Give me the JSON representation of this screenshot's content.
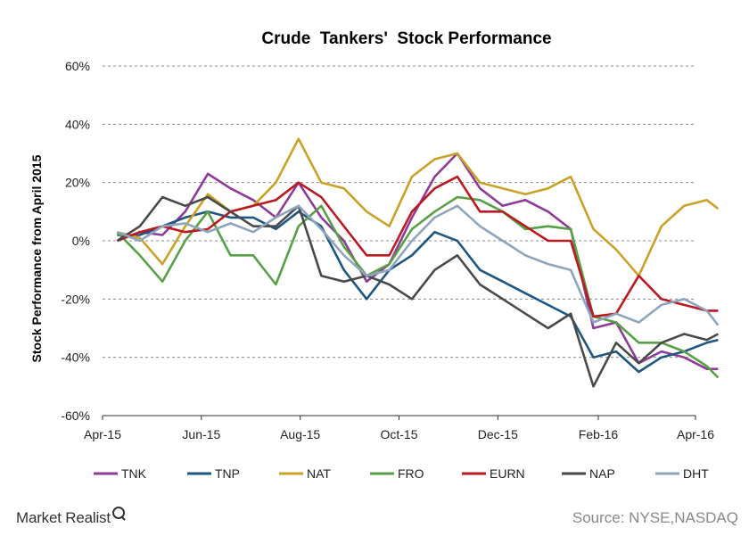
{
  "chart_data": {
    "type": "line",
    "title": "Crude  Tankers'  Stock Performance",
    "ylabel": "Stock Performance from April 2015",
    "xlabel": "",
    "x_tick_labels": [
      "Apr-15",
      "Jun-15",
      "Aug-15",
      "Oct-15",
      "Dec-15",
      "Feb-16",
      "Apr-16"
    ],
    "y_tick_labels": [
      "60%",
      "40%",
      "20%",
      "0%",
      "-20%",
      "-40%",
      "-60%"
    ],
    "ylim": [
      -60,
      60
    ],
    "x": [
      "2015-04-10",
      "2015-04-24",
      "2015-05-08",
      "2015-05-22",
      "2015-06-05",
      "2015-06-19",
      "2015-07-03",
      "2015-07-17",
      "2015-07-31",
      "2015-08-14",
      "2015-08-28",
      "2015-09-11",
      "2015-09-25",
      "2015-10-09",
      "2015-10-23",
      "2015-11-06",
      "2015-11-20",
      "2015-12-04",
      "2015-12-18",
      "2016-01-01",
      "2016-01-15",
      "2016-01-29",
      "2016-02-12",
      "2016-02-26",
      "2016-03-11",
      "2016-03-25",
      "2016-04-08",
      "2016-04-15"
    ],
    "grid": true,
    "legend_position": "bottom",
    "series": [
      {
        "name": "TNK",
        "color": "#8e3c97",
        "values": [
          0,
          3,
          2,
          10,
          23,
          18,
          14,
          8,
          20,
          8,
          0,
          -14,
          -8,
          8,
          22,
          30,
          18,
          12,
          14,
          10,
          4,
          -30,
          -28,
          -42,
          -38,
          -40,
          -44,
          -44
        ]
      },
      {
        "name": "TNP",
        "color": "#1f5781",
        "values": [
          2,
          2,
          5,
          8,
          10,
          8,
          8,
          4,
          10,
          5,
          -10,
          -20,
          -10,
          -5,
          3,
          0,
          -10,
          -14,
          -18,
          -22,
          -26,
          -40,
          -38,
          -45,
          -40,
          -38,
          -35,
          -34
        ]
      },
      {
        "name": "NAT",
        "color": "#c9a227",
        "values": [
          3,
          1,
          -8,
          5,
          16,
          10,
          12,
          20,
          35,
          20,
          18,
          10,
          5,
          22,
          28,
          30,
          20,
          18,
          16,
          18,
          22,
          4,
          -3,
          -12,
          5,
          12,
          14,
          11
        ]
      },
      {
        "name": "FRO",
        "color": "#58a046",
        "values": [
          3,
          -5,
          -14,
          0,
          10,
          -5,
          -5,
          -15,
          5,
          12,
          -2,
          -12,
          -8,
          4,
          10,
          15,
          14,
          10,
          4,
          5,
          4,
          -26,
          -28,
          -35,
          -35,
          -38,
          -43,
          -47
        ]
      },
      {
        "name": "EURN",
        "color": "#bb1a20",
        "values": [
          0,
          3,
          5,
          3,
          4,
          10,
          12,
          14,
          20,
          15,
          5,
          -5,
          -5,
          10,
          18,
          22,
          10,
          10,
          5,
          0,
          0,
          -26,
          -25,
          -12,
          -20,
          -22,
          -24,
          -24
        ]
      },
      {
        "name": "NAP",
        "color": "#4a4a4a",
        "values": [
          0,
          5,
          15,
          12,
          15,
          10,
          5,
          5,
          12,
          -12,
          -14,
          -12,
          -15,
          -20,
          -10,
          -5,
          -15,
          -20,
          -25,
          -30,
          -25,
          -50,
          -35,
          -42,
          -35,
          -32,
          -34,
          -32
        ]
      },
      {
        "name": "DHT",
        "color": "#8ea6bd",
        "values": [
          3,
          0,
          5,
          6,
          3,
          6,
          3,
          8,
          12,
          4,
          -5,
          -12,
          -10,
          0,
          8,
          12,
          5,
          0,
          -5,
          -8,
          -10,
          -28,
          -25,
          -28,
          -22,
          -20,
          -24,
          -29
        ]
      }
    ]
  },
  "footer": {
    "brand": "Market Realist",
    "source": "Source: NYSE,NASDAQ"
  }
}
